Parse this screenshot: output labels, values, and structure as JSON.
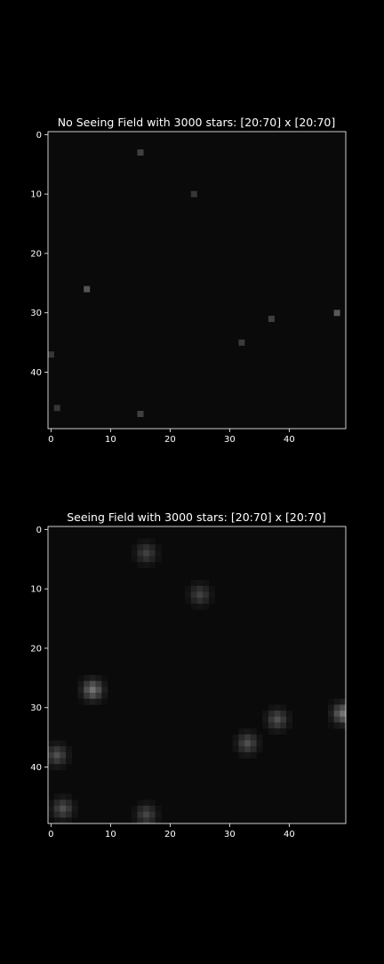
{
  "colors": {
    "background": "#000000",
    "foreground": "#ffffff",
    "colormap": "gray"
  },
  "chart_data": [
    {
      "type": "heatmap",
      "title": "No Seeing Field with 3000 stars: [20:70] x [20:70]",
      "xlabel": "",
      "ylabel": "",
      "grid": false,
      "image_size": [
        50,
        50
      ],
      "xlim": [
        -0.5,
        49.5
      ],
      "ylim": [
        49.5,
        -0.5
      ],
      "y_inverted": true,
      "xticks": [
        0,
        10,
        20,
        30,
        40
      ],
      "yticks": [
        0,
        10,
        20,
        30,
        40
      ],
      "xtick_labels": [
        "0",
        "10",
        "20",
        "30",
        "40"
      ],
      "ytick_labels": [
        "0",
        "10",
        "20",
        "30",
        "40"
      ],
      "stars": [
        {
          "x": 15,
          "y": 3,
          "intensity": 0.22
        },
        {
          "x": 24,
          "y": 10,
          "intensity": 0.18
        },
        {
          "x": 6,
          "y": 26,
          "intensity": 0.3
        },
        {
          "x": 48,
          "y": 30,
          "intensity": 0.32
        },
        {
          "x": 37,
          "y": 31,
          "intensity": 0.22
        },
        {
          "x": 32,
          "y": 35,
          "intensity": 0.2
        },
        {
          "x": 0,
          "y": 37,
          "intensity": 0.18
        },
        {
          "x": 1,
          "y": 46,
          "intensity": 0.18
        },
        {
          "x": 15,
          "y": 47,
          "intensity": 0.22
        }
      ],
      "psf_sigma": 0
    },
    {
      "type": "heatmap",
      "title": "Seeing Field with 3000 stars: [20:70] x [20:70]",
      "xlabel": "",
      "ylabel": "",
      "grid": false,
      "image_size": [
        50,
        50
      ],
      "xlim": [
        -0.5,
        49.5
      ],
      "ylim": [
        49.5,
        -0.5
      ],
      "y_inverted": true,
      "xticks": [
        0,
        10,
        20,
        30,
        40
      ],
      "yticks": [
        0,
        10,
        20,
        30,
        40
      ],
      "xtick_labels": [
        "0",
        "10",
        "20",
        "30",
        "40"
      ],
      "ytick_labels": [
        "0",
        "10",
        "20",
        "30",
        "40"
      ],
      "stars": [
        {
          "x": 16,
          "y": 4,
          "intensity": 0.22
        },
        {
          "x": 25,
          "y": 11,
          "intensity": 0.22
        },
        {
          "x": 7,
          "y": 27,
          "intensity": 0.42
        },
        {
          "x": 49,
          "y": 31,
          "intensity": 0.42
        },
        {
          "x": 38,
          "y": 32,
          "intensity": 0.28
        },
        {
          "x": 33,
          "y": 36,
          "intensity": 0.28
        },
        {
          "x": 1,
          "y": 38,
          "intensity": 0.28
        },
        {
          "x": 2,
          "y": 47,
          "intensity": 0.28
        },
        {
          "x": 16,
          "y": 48,
          "intensity": 0.24
        }
      ],
      "psf_sigma": 1.1
    }
  ]
}
